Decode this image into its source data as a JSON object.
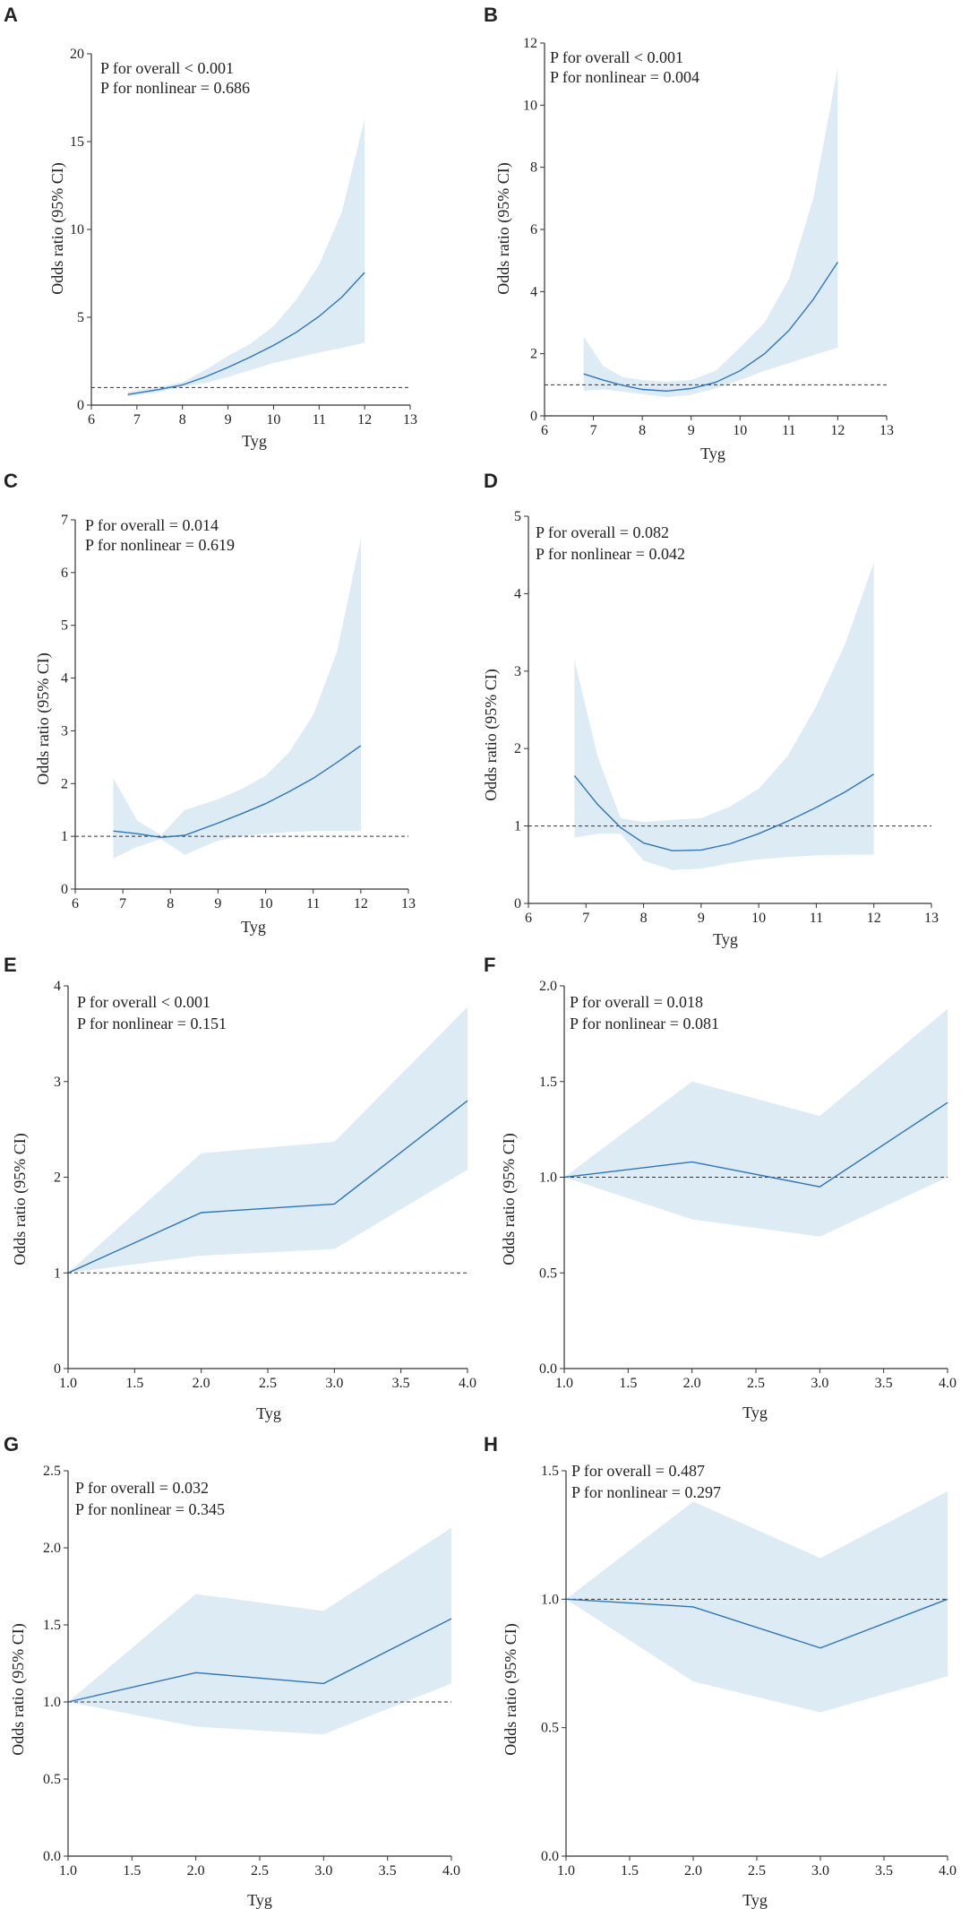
{
  "chart_data": [
    {
      "panel": "A",
      "type": "line",
      "annotations": [
        "P for overall < 0.001",
        "P for nonlinear = 0.686"
      ],
      "xlabel": "Tyg",
      "ylabel": "Odds ratio (95% CI)",
      "xlim": [
        6,
        13
      ],
      "ylim": [
        0,
        20
      ],
      "xticks": [
        6,
        7,
        8,
        9,
        10,
        11,
        12,
        13
      ],
      "xtick_labels": [
        "6",
        "7",
        "8",
        "9",
        "10",
        "11",
        "12",
        "13"
      ],
      "yticks": [
        0,
        5,
        10,
        15,
        20
      ],
      "ytick_labels": [
        "0",
        "5",
        "10",
        "15",
        "20"
      ],
      "reference_line": 1,
      "x": [
        6.8,
        7.5,
        8,
        8.5,
        9,
        9.5,
        10,
        10.5,
        11,
        11.5,
        12
      ],
      "estimate": [
        0.6,
        0.9,
        1.15,
        1.6,
        2.15,
        2.75,
        3.4,
        4.15,
        5.05,
        6.15,
        7.55
      ],
      "lower": [
        0.5,
        0.75,
        1.05,
        1.25,
        1.6,
        2.0,
        2.4,
        2.7,
        3.0,
        3.25,
        3.55
      ],
      "upper": [
        0.75,
        1.05,
        1.3,
        2.0,
        2.8,
        3.5,
        4.5,
        6.0,
        8.0,
        11.0,
        16.3
      ]
    },
    {
      "panel": "B",
      "type": "line",
      "annotations": [
        "P for overall < 0.001",
        "P for nonlinear = 0.004"
      ],
      "xlabel": "Tyg",
      "ylabel": "Odds ratio (95% CI)",
      "xlim": [
        6,
        13
      ],
      "ylim": [
        0,
        12
      ],
      "xticks": [
        6,
        7,
        8,
        9,
        10,
        11,
        12,
        13
      ],
      "xtick_labels": [
        "6",
        "7",
        "8",
        "9",
        "10",
        "11",
        "12",
        "13"
      ],
      "yticks": [
        0,
        2,
        4,
        6,
        8,
        10,
        12
      ],
      "ytick_labels": [
        "0",
        "2",
        "4",
        "6",
        "8",
        "10",
        "12"
      ],
      "reference_line": 1,
      "x": [
        6.8,
        7.2,
        7.6,
        8,
        8.5,
        9,
        9.5,
        10,
        10.5,
        11,
        11.5,
        12
      ],
      "estimate": [
        1.35,
        1.15,
        0.98,
        0.85,
        0.8,
        0.88,
        1.08,
        1.45,
        2.0,
        2.75,
        3.75,
        4.95
      ],
      "lower": [
        0.8,
        0.85,
        0.78,
        0.7,
        0.6,
        0.68,
        0.88,
        1.15,
        1.45,
        1.7,
        1.95,
        2.2
      ],
      "upper": [
        2.55,
        1.6,
        1.25,
        1.15,
        1.1,
        1.15,
        1.45,
        2.2,
        3.0,
        4.4,
        7.0,
        11.2
      ]
    },
    {
      "panel": "C",
      "type": "line",
      "annotations": [
        "P for overall = 0.014",
        "P for nonlinear = 0.619"
      ],
      "xlabel": "Tyg",
      "ylabel": "Odds ratio (95% CI)",
      "xlim": [
        6,
        13
      ],
      "ylim": [
        0,
        7
      ],
      "xticks": [
        6,
        7,
        8,
        9,
        10,
        11,
        12,
        13
      ],
      "xtick_labels": [
        "6",
        "7",
        "8",
        "9",
        "10",
        "11",
        "12",
        "13"
      ],
      "yticks": [
        0,
        1,
        2,
        3,
        4,
        5,
        6,
        7
      ],
      "ytick_labels": [
        "0",
        "1",
        "2",
        "3",
        "4",
        "5",
        "6",
        "7"
      ],
      "reference_line": 1,
      "x": [
        6.8,
        7.3,
        7.8,
        8.3,
        9,
        9.5,
        10,
        10.5,
        11,
        11.5,
        12
      ],
      "estimate": [
        1.1,
        1.05,
        0.98,
        1.02,
        1.25,
        1.43,
        1.62,
        1.85,
        2.1,
        2.4,
        2.72
      ],
      "lower": [
        0.58,
        0.8,
        0.95,
        0.65,
        0.92,
        1.0,
        1.05,
        1.08,
        1.1,
        1.1,
        1.1
      ],
      "upper": [
        2.1,
        1.3,
        1.02,
        1.5,
        1.7,
        1.9,
        2.15,
        2.6,
        3.3,
        4.5,
        6.65
      ]
    },
    {
      "panel": "D",
      "type": "line",
      "annotations": [
        "P for overall = 0.082",
        "P for nonlinear = 0.042"
      ],
      "xlabel": "Tyg",
      "ylabel": "Odds ratio (95% CI)",
      "xlim": [
        6,
        13
      ],
      "ylim": [
        0,
        5
      ],
      "xticks": [
        6,
        7,
        8,
        9,
        10,
        11,
        12,
        13
      ],
      "xtick_labels": [
        "6",
        "7",
        "8",
        "9",
        "10",
        "11",
        "12",
        "13"
      ],
      "yticks": [
        0,
        1,
        2,
        3,
        4,
        5
      ],
      "ytick_labels": [
        "0",
        "1",
        "2",
        "3",
        "4",
        "5"
      ],
      "reference_line": 1,
      "x": [
        6.8,
        7.2,
        7.6,
        8,
        8.5,
        9,
        9.5,
        10,
        10.5,
        11,
        11.5,
        12
      ],
      "estimate": [
        1.65,
        1.28,
        0.98,
        0.78,
        0.68,
        0.69,
        0.77,
        0.9,
        1.06,
        1.24,
        1.44,
        1.67
      ],
      "lower": [
        0.85,
        0.9,
        0.9,
        0.55,
        0.43,
        0.45,
        0.52,
        0.57,
        0.6,
        0.62,
        0.63,
        0.63
      ],
      "upper": [
        3.15,
        1.9,
        1.1,
        1.05,
        1.08,
        1.1,
        1.25,
        1.48,
        1.9,
        2.55,
        3.35,
        4.4
      ]
    },
    {
      "panel": "E",
      "type": "line",
      "annotations": [
        "P for overall < 0.001",
        "P for nonlinear = 0.151"
      ],
      "xlabel": "Tyg",
      "ylabel": "Odds ratio (95% CI)",
      "xlim": [
        1,
        4
      ],
      "ylim": [
        0,
        4
      ],
      "xticks": [
        1,
        1.5,
        2,
        2.5,
        3,
        3.5,
        4
      ],
      "xtick_labels": [
        "1.0",
        "1.5",
        "2.0",
        "2.5",
        "3.0",
        "3.5",
        "4.0"
      ],
      "yticks": [
        0,
        1,
        2,
        3,
        4
      ],
      "ytick_labels": [
        "0",
        "1",
        "2",
        "3",
        "4"
      ],
      "reference_line": 1,
      "x": [
        1,
        2,
        3,
        4
      ],
      "estimate": [
        1.0,
        1.63,
        1.72,
        2.8
      ],
      "lower": [
        1.0,
        1.18,
        1.25,
        2.08
      ],
      "upper": [
        1.0,
        2.25,
        2.37,
        3.78
      ]
    },
    {
      "panel": "F",
      "type": "line",
      "annotations": [
        "P for overall = 0.018",
        "P for nonlinear = 0.081"
      ],
      "xlabel": "Tyg",
      "ylabel": "Odds ratio (95% CI)",
      "xlim": [
        1,
        4
      ],
      "ylim": [
        0,
        2
      ],
      "xticks": [
        1,
        1.5,
        2,
        2.5,
        3,
        3.5,
        4
      ],
      "xtick_labels": [
        "1.0",
        "1.5",
        "2.0",
        "2.5",
        "3.0",
        "3.5",
        "4.0"
      ],
      "yticks": [
        0,
        0.5,
        1,
        1.5,
        2
      ],
      "ytick_labels": [
        "0.0",
        "0.5",
        "1.0",
        "1.5",
        "2.0"
      ],
      "reference_line": 1,
      "x": [
        1,
        2,
        3,
        4
      ],
      "estimate": [
        1.0,
        1.08,
        0.95,
        1.39
      ],
      "lower": [
        1.0,
        0.78,
        0.69,
        1.0
      ],
      "upper": [
        1.0,
        1.5,
        1.32,
        1.88
      ]
    },
    {
      "panel": "G",
      "type": "line",
      "annotations": [
        "P for overall = 0.032",
        "P for nonlinear = 0.345"
      ],
      "xlabel": "Tyg",
      "ylabel": "Odds ratio (95% CI)",
      "xlim": [
        1,
        4
      ],
      "ylim": [
        0,
        2.5
      ],
      "xticks": [
        1,
        1.5,
        2,
        2.5,
        3,
        3.5,
        4
      ],
      "xtick_labels": [
        "1.0",
        "1.5",
        "2.0",
        "2.5",
        "3.0",
        "3.5",
        "4.0"
      ],
      "yticks": [
        0,
        0.5,
        1,
        1.5,
        2,
        2.5
      ],
      "ytick_labels": [
        "0.0",
        "0.5",
        "1.0",
        "1.5",
        "2.0",
        "2.5"
      ],
      "reference_line": 1,
      "x": [
        1,
        2,
        3,
        4
      ],
      "estimate": [
        1.0,
        1.19,
        1.12,
        1.54
      ],
      "lower": [
        1.0,
        0.84,
        0.79,
        1.12
      ],
      "upper": [
        1.0,
        1.7,
        1.59,
        2.13
      ]
    },
    {
      "panel": "H",
      "type": "line",
      "annotations": [
        "P for overall = 0.487",
        "P for nonlinear = 0.297"
      ],
      "xlabel": "Tyg",
      "ylabel": "Odds ratio (95% CI)",
      "xlim": [
        1,
        4
      ],
      "ylim": [
        0,
        1.5
      ],
      "xticks": [
        1,
        1.5,
        2,
        2.5,
        3,
        3.5,
        4
      ],
      "xtick_labels": [
        "1.0",
        "1.5",
        "2.0",
        "2.5",
        "3.0",
        "3.5",
        "4.0"
      ],
      "yticks": [
        0,
        0.5,
        1,
        1.5
      ],
      "ytick_labels": [
        "0.0",
        "0.5",
        "1.0",
        "1.5"
      ],
      "reference_line": 1,
      "x": [
        1,
        2,
        3,
        4
      ],
      "estimate": [
        1.0,
        0.97,
        0.81,
        1.0
      ],
      "lower": [
        1.0,
        0.68,
        0.56,
        0.7
      ],
      "upper": [
        1.0,
        1.38,
        1.16,
        1.42
      ]
    }
  ],
  "colors": {
    "line": "#2e75b6",
    "band": "#ddebf5",
    "axis": "#333333",
    "reference": "#333333"
  }
}
